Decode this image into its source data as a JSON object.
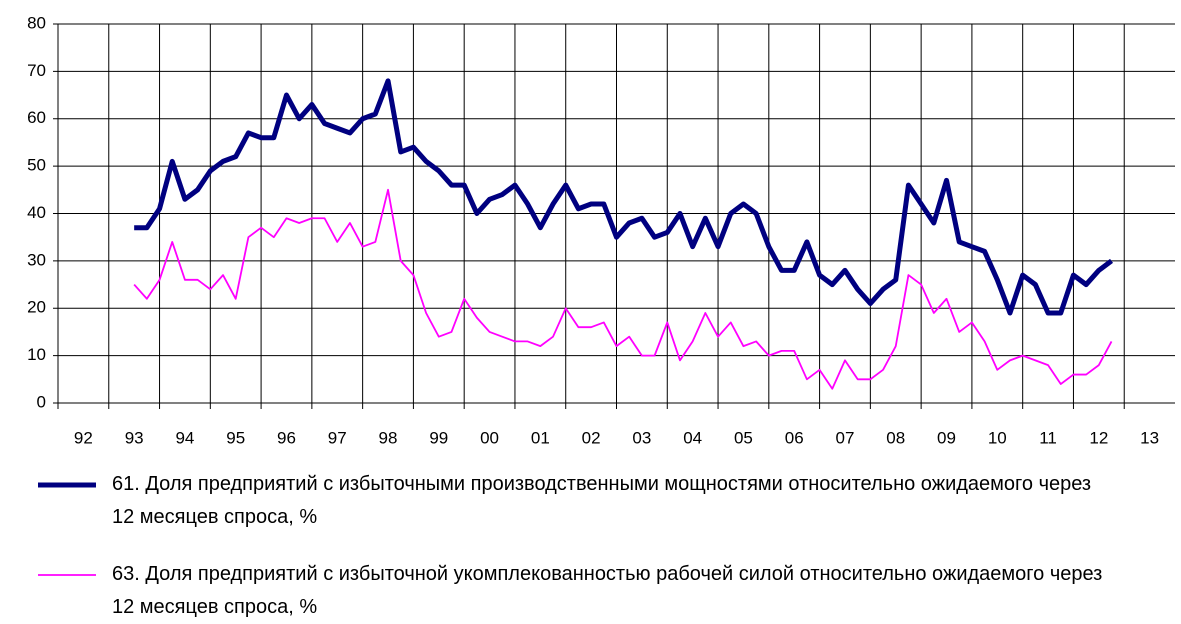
{
  "chart_data": {
    "type": "line",
    "x": [
      1993.5,
      1993.75,
      1994,
      1994.25,
      1994.5,
      1994.75,
      1995,
      1995.25,
      1995.5,
      1995.75,
      1996,
      1996.25,
      1996.5,
      1996.75,
      1997,
      1997.25,
      1997.5,
      1997.75,
      1998,
      1998.25,
      1998.5,
      1998.75,
      1999,
      1999.25,
      1999.5,
      1999.75,
      2000,
      2000.25,
      2000.5,
      2000.75,
      2001,
      2001.25,
      2001.5,
      2001.75,
      2002,
      2002.25,
      2002.5,
      2002.75,
      2003,
      2003.25,
      2003.5,
      2003.75,
      2004,
      2004.25,
      2004.5,
      2004.75,
      2005,
      2005.25,
      2005.5,
      2005.75,
      2006,
      2006.25,
      2006.5,
      2006.75,
      2007,
      2007.25,
      2007.5,
      2007.75,
      2008,
      2008.25,
      2008.5,
      2008.75,
      2009,
      2009.25,
      2009.5,
      2009.75,
      2010,
      2010.25,
      2010.5,
      2010.75,
      2011,
      2011.25,
      2011.5,
      2011.75,
      2012,
      2012.25,
      2012.5,
      2012.75
    ],
    "series": [
      {
        "name": "61. Доля предприятий с избыточными производственными мощностями относительно ожидаемого через 12 месяцев спроса, %",
        "color": "#000080",
        "values": [
          37,
          37,
          41,
          51,
          43,
          45,
          49,
          51,
          52,
          57,
          56,
          56,
          65,
          60,
          63,
          59,
          58,
          57,
          60,
          61,
          68,
          53,
          54,
          51,
          49,
          46,
          46,
          40,
          43,
          44,
          46,
          42,
          37,
          42,
          46,
          41,
          42,
          42,
          35,
          38,
          39,
          35,
          36,
          40,
          33,
          39,
          33,
          40,
          42,
          40,
          33,
          28,
          28,
          34,
          27,
          25,
          28,
          24,
          21,
          24,
          26,
          46,
          42,
          38,
          47,
          34,
          33,
          32,
          26,
          19,
          27,
          25,
          19,
          19,
          27,
          25,
          28,
          30
        ]
      },
      {
        "name": "63. Доля предприятий с избыточной укомплекованностью рабочей силой относительно ожидаемого через 12 месяцев спроса, %",
        "color": "#ff00ff",
        "values": [
          25,
          22,
          26,
          34,
          26,
          26,
          24,
          27,
          22,
          35,
          37,
          35,
          39,
          38,
          39,
          39,
          34,
          38,
          33,
          34,
          45,
          30,
          27,
          19,
          14,
          15,
          22,
          18,
          15,
          14,
          13,
          13,
          12,
          14,
          20,
          16,
          16,
          17,
          12,
          14,
          10,
          10,
          17,
          9,
          13,
          19,
          14,
          17,
          12,
          13,
          10,
          11,
          11,
          5,
          7,
          3,
          9,
          5,
          5,
          7,
          12,
          27,
          25,
          19,
          22,
          15,
          17,
          13,
          7,
          9,
          10,
          9,
          8,
          4,
          6,
          6,
          8,
          13
        ]
      }
    ],
    "xlim": [
      1992,
      2014
    ],
    "xticks": [
      {
        "value": 1992.5,
        "label": "92"
      },
      {
        "value": 1993.5,
        "label": "93"
      },
      {
        "value": 1994.5,
        "label": "94"
      },
      {
        "value": 1995.5,
        "label": "95"
      },
      {
        "value": 1996.5,
        "label": "96"
      },
      {
        "value": 1997.5,
        "label": "97"
      },
      {
        "value": 1998.5,
        "label": "98"
      },
      {
        "value": 1999.5,
        "label": "99"
      },
      {
        "value": 2000.5,
        "label": "00"
      },
      {
        "value": 2001.5,
        "label": "01"
      },
      {
        "value": 2002.5,
        "label": "02"
      },
      {
        "value": 2003.5,
        "label": "03"
      },
      {
        "value": 2004.5,
        "label": "04"
      },
      {
        "value": 2005.5,
        "label": "05"
      },
      {
        "value": 2006.5,
        "label": "06"
      },
      {
        "value": 2007.5,
        "label": "07"
      },
      {
        "value": 2008.5,
        "label": "08"
      },
      {
        "value": 2009.5,
        "label": "09"
      },
      {
        "value": 2010.5,
        "label": "10"
      },
      {
        "value": 2011.5,
        "label": "11"
      },
      {
        "value": 2012.5,
        "label": "12"
      },
      {
        "value": 2013.5,
        "label": "13"
      }
    ],
    "ylim": [
      0,
      80
    ],
    "yticks": [
      0,
      10,
      20,
      30,
      40,
      50,
      60,
      70,
      80
    ],
    "grid": true
  }
}
